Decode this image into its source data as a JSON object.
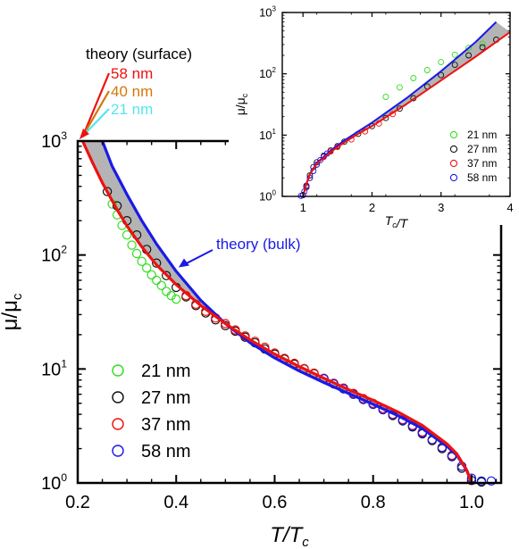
{
  "colors": {
    "green": "#33dd22",
    "black": "#111111",
    "red": "#ee1111",
    "blue": "#1a1ae6",
    "orange": "#d2780a",
    "cyan": "#55e6ee",
    "band": "#b4b4b4",
    "axis": "#000000"
  },
  "chart_data": [
    {
      "id": "main",
      "type": "scatter",
      "xlabel": "T/T_c",
      "ylabel": "μ/μ_c",
      "xlim": [
        0.2,
        1.06
      ],
      "ylim": [
        1,
        1000
      ],
      "yscale": "log",
      "grid": false,
      "legend_position": "bottom-left",
      "x_ticks": [
        0.2,
        0.4,
        0.6,
        0.8,
        1.0
      ],
      "x_tick_labels": [
        "0.2",
        "0.4",
        "0.6",
        "0.8",
        "1.0"
      ],
      "y_ticks": [
        1,
        10,
        100,
        1000
      ],
      "y_tick_labels": [
        {
          "base": "10",
          "exp": "0"
        },
        {
          "base": "10",
          "exp": "1"
        },
        {
          "base": "10",
          "exp": "2"
        },
        {
          "base": "10",
          "exp": "3"
        }
      ],
      "series": [
        {
          "name": "21 nm",
          "color": "green",
          "x": [
            0.27,
            0.28,
            0.29,
            0.3,
            0.31,
            0.32,
            0.33,
            0.34,
            0.35,
            0.36,
            0.37,
            0.38,
            0.39,
            0.4
          ],
          "y": [
            280,
            225,
            182,
            150,
            122,
            103,
            88,
            77,
            67,
            60,
            54,
            48,
            44,
            41
          ]
        },
        {
          "name": "27 nm",
          "color": "black",
          "x": [
            0.26,
            0.28,
            0.3,
            0.32,
            0.34,
            0.36,
            0.38,
            0.4,
            0.42,
            0.44,
            0.46,
            0.48,
            0.5,
            0.52,
            0.54,
            0.56,
            0.58,
            0.6,
            0.62,
            0.64,
            0.66,
            0.68,
            0.7,
            0.72,
            0.74,
            0.76,
            0.78,
            0.8,
            0.82,
            0.84,
            0.86,
            0.88,
            0.9,
            0.92,
            0.94,
            0.96,
            0.98,
            1.0,
            1.02
          ],
          "y": [
            360,
            270,
            200,
            150,
            112,
            85,
            66,
            52,
            43,
            36,
            31,
            27,
            24,
            21.5,
            19,
            17,
            15,
            13.5,
            12.2,
            11,
            10,
            9.1,
            8.2,
            7.4,
            6.7,
            6.0,
            5.4,
            4.9,
            4.4,
            3.9,
            3.5,
            3.1,
            2.7,
            2.35,
            2.0,
            1.7,
            1.35,
            1.05,
            1.02
          ]
        },
        {
          "name": "37 nm",
          "color": "red",
          "x": [
            0.42,
            0.44,
            0.46,
            0.48,
            0.5,
            0.52,
            0.54,
            0.56,
            0.58,
            0.6,
            0.62,
            0.64,
            0.66,
            0.68,
            0.7,
            0.72,
            0.74,
            0.76,
            0.78,
            0.8,
            0.82,
            0.84,
            0.86,
            0.88,
            0.9,
            0.92,
            0.94,
            0.96,
            0.98
          ],
          "y": [
            44,
            37,
            32,
            28,
            25,
            22,
            19.5,
            17.5,
            15.5,
            13.8,
            12.4,
            11.2,
            10.1,
            9.2,
            8.3,
            7.5,
            6.8,
            6.1,
            5.5,
            5.0,
            4.5,
            4.0,
            3.6,
            3.2,
            2.8,
            2.4,
            2.05,
            1.75,
            1.4
          ]
        },
        {
          "name": "58 nm",
          "color": "blue",
          "x": [
            0.7,
            0.72,
            0.74,
            0.76,
            0.78,
            0.8,
            0.82,
            0.84,
            0.86,
            0.88,
            0.9,
            0.92,
            0.94,
            0.96,
            0.98,
            1.0,
            1.02,
            1.04
          ],
          "y": [
            8.2,
            7.4,
            6.7,
            6.0,
            5.4,
            4.9,
            4.4,
            3.95,
            3.55,
            3.15,
            2.75,
            2.4,
            2.05,
            1.72,
            1.4,
            1.1,
            1.04,
            1.04
          ]
        }
      ],
      "theory_curves": [
        {
          "name": "theory (bulk)",
          "color": "blue",
          "x": [
            0.25,
            0.27,
            0.3,
            0.33,
            0.36,
            0.4,
            0.45,
            0.5,
            0.55,
            0.6,
            0.65,
            0.7,
            0.75,
            0.8,
            0.85,
            0.9,
            0.95,
            0.97,
            0.99,
            1.0
          ],
          "y": [
            1000,
            600,
            340,
            200,
            125,
            72,
            40,
            25,
            17,
            12.5,
            9.6,
            7.6,
            6.1,
            4.9,
            3.9,
            3.0,
            2.1,
            1.75,
            1.3,
            1.0
          ]
        },
        {
          "name": "58 nm",
          "color": "red",
          "x": [
            0.21,
            0.23,
            0.25,
            0.28,
            0.3,
            0.33,
            0.36,
            0.4,
            0.45,
            0.5,
            0.55,
            0.6,
            0.65,
            0.7,
            0.75,
            0.8,
            0.85,
            0.9,
            0.95,
            0.97,
            0.99,
            1.0
          ],
          "y": [
            1000,
            650,
            430,
            250,
            180,
            118,
            82,
            55,
            36,
            25,
            18,
            13.5,
            10.5,
            8.3,
            6.6,
            5.3,
            4.2,
            3.2,
            2.2,
            1.8,
            1.3,
            1.0
          ]
        }
      ],
      "annotations": {
        "surface_title": "theory (surface)",
        "surface_labels": [
          {
            "text": "58 nm",
            "color": "red"
          },
          {
            "text": "40 nm",
            "color": "orange"
          },
          {
            "text": "21 nm",
            "color": "cyan"
          }
        ],
        "bulk_label": "theory (bulk)"
      },
      "legend": [
        {
          "label": "21 nm",
          "color": "green"
        },
        {
          "label": "27 nm",
          "color": "black"
        },
        {
          "label": "37 nm",
          "color": "red"
        },
        {
          "label": "58 nm",
          "color": "blue"
        }
      ]
    },
    {
      "id": "inset",
      "type": "scatter",
      "xlabel": "T_c/T",
      "ylabel": "μ/μ_c",
      "xlim": [
        0.7,
        4
      ],
      "ylim": [
        1,
        1000
      ],
      "yscale": "log",
      "grid": false,
      "legend_position": "bottom-right",
      "x_ticks": [
        1,
        2,
        3,
        4
      ],
      "x_tick_labels": [
        "1",
        "2",
        "3",
        "4"
      ],
      "y_ticks": [
        1,
        10,
        100,
        1000
      ],
      "y_tick_labels": [
        {
          "base": "10",
          "exp": "0"
        },
        {
          "base": "10",
          "exp": "1"
        },
        {
          "base": "10",
          "exp": "2"
        },
        {
          "base": "10",
          "exp": "3"
        }
      ],
      "series": [
        {
          "name": "21 nm",
          "color": "green",
          "x": [
            2.2,
            2.4,
            2.6,
            2.8,
            3.0,
            3.2,
            3.4,
            3.6
          ],
          "y": [
            42,
            60,
            85,
            115,
            155,
            205,
            265,
            310
          ]
        },
        {
          "name": "27 nm",
          "color": "black",
          "x": [
            1.0,
            1.05,
            1.1,
            1.15,
            1.2,
            1.3,
            1.4,
            1.5,
            1.6,
            1.8,
            2.0,
            2.2,
            2.4,
            2.6,
            2.8,
            3.0,
            3.2,
            3.4,
            3.6,
            3.8
          ],
          "y": [
            1.05,
            1.5,
            2.2,
            3.0,
            3.6,
            4.6,
            5.6,
            6.6,
            7.8,
            10.5,
            14,
            19,
            27,
            40,
            62,
            95,
            140,
            200,
            270,
            360
          ]
        },
        {
          "name": "37 nm",
          "color": "red",
          "x": [
            1.05,
            1.1,
            1.2,
            1.3,
            1.4,
            1.5,
            1.7,
            1.9,
            2.1,
            2.3
          ],
          "y": [
            1.4,
            2.0,
            3.3,
            4.4,
            5.4,
            6.4,
            8.5,
            11.5,
            15.5,
            22
          ]
        },
        {
          "name": "58 nm",
          "color": "blue",
          "x": [
            0.97,
            1.0,
            1.02,
            1.05,
            1.1,
            1.15,
            1.2,
            1.25,
            1.3,
            1.35
          ],
          "y": [
            1.02,
            1.05,
            1.2,
            1.45,
            2.0,
            2.6,
            3.3,
            3.9,
            4.5,
            5.0
          ]
        }
      ],
      "theory_curves": [
        {
          "name": "theory (bulk)",
          "color": "blue",
          "x": [
            1.0,
            1.05,
            1.1,
            1.2,
            1.4,
            1.6,
            1.8,
            2.0,
            2.5,
            3.0,
            3.5,
            3.8
          ],
          "y": [
            1.0,
            1.6,
            2.3,
            3.5,
            5.6,
            8.2,
            11.5,
            16,
            40,
            110,
            330,
            700
          ]
        },
        {
          "name": "58 nm",
          "color": "red",
          "x": [
            1.0,
            1.05,
            1.1,
            1.2,
            1.4,
            1.6,
            1.8,
            2.0,
            2.5,
            3.0,
            3.5,
            4.0
          ],
          "y": [
            1.0,
            1.6,
            2.3,
            3.4,
            5.3,
            7.6,
            10.5,
            14,
            32,
            78,
            190,
            480
          ]
        }
      ],
      "legend": [
        {
          "label": "21 nm",
          "color": "green"
        },
        {
          "label": "27 nm",
          "color": "black"
        },
        {
          "label": "37 nm",
          "color": "red"
        },
        {
          "label": "58 nm",
          "color": "blue"
        }
      ]
    }
  ]
}
